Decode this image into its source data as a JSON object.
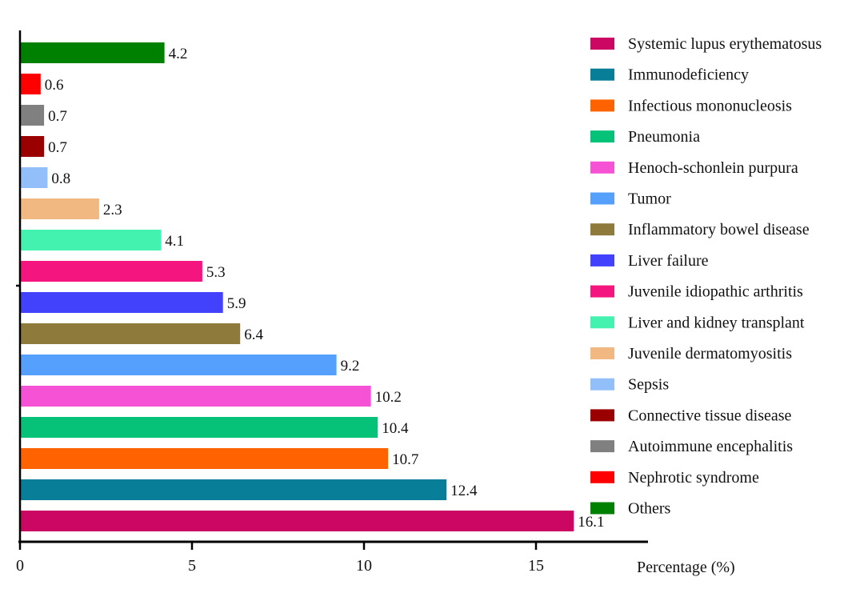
{
  "chart_data": {
    "type": "bar",
    "orientation": "horizontal",
    "title": "",
    "xlabel": "Percentage (%)",
    "ylabel": "",
    "xlim": [
      0,
      18
    ],
    "xticks": [
      0,
      5,
      10,
      15
    ],
    "grid": false,
    "legend_position": "right",
    "categories": [
      "Systemic lupus erythematosus",
      "Immunodeficiency",
      "Infectious mononucleosis",
      "Pneumonia",
      "Henoch-schonlein purpura",
      "Tumor",
      "Inflammatory bowel disease",
      "Liver failure",
      "Juvenile idiopathic arthritis",
      "Liver and kidney transplant",
      "Juvenile dermatomyositis",
      "Sepsis",
      "Connective tissue disease",
      "Autoimmune encephalitis",
      "Nephrotic syndrome",
      "Others"
    ],
    "values": [
      16.1,
      12.4,
      10.7,
      10.4,
      10.2,
      9.2,
      6.4,
      5.9,
      5.3,
      4.1,
      2.3,
      0.8,
      0.7,
      0.7,
      0.6,
      4.2
    ],
    "value_labels": [
      "16.1",
      "12.4",
      "10.7",
      "10.4",
      "10.2",
      "9.2",
      "6.4",
      "5.9",
      "5.3",
      "4.1",
      "2.3",
      "0.8",
      "0.7",
      "0.7",
      "0.6",
      "4.2"
    ],
    "colors": [
      "#CC0763",
      "#087E98",
      "#FF6200",
      "#06C178",
      "#F552D6",
      "#55A0FC",
      "#8E7B3B",
      "#4242FC",
      "#F4157F",
      "#44F2B0",
      "#F1B881",
      "#92BFF9",
      "#9A0000",
      "#808080",
      "#FF0000",
      "#008000"
    ]
  }
}
